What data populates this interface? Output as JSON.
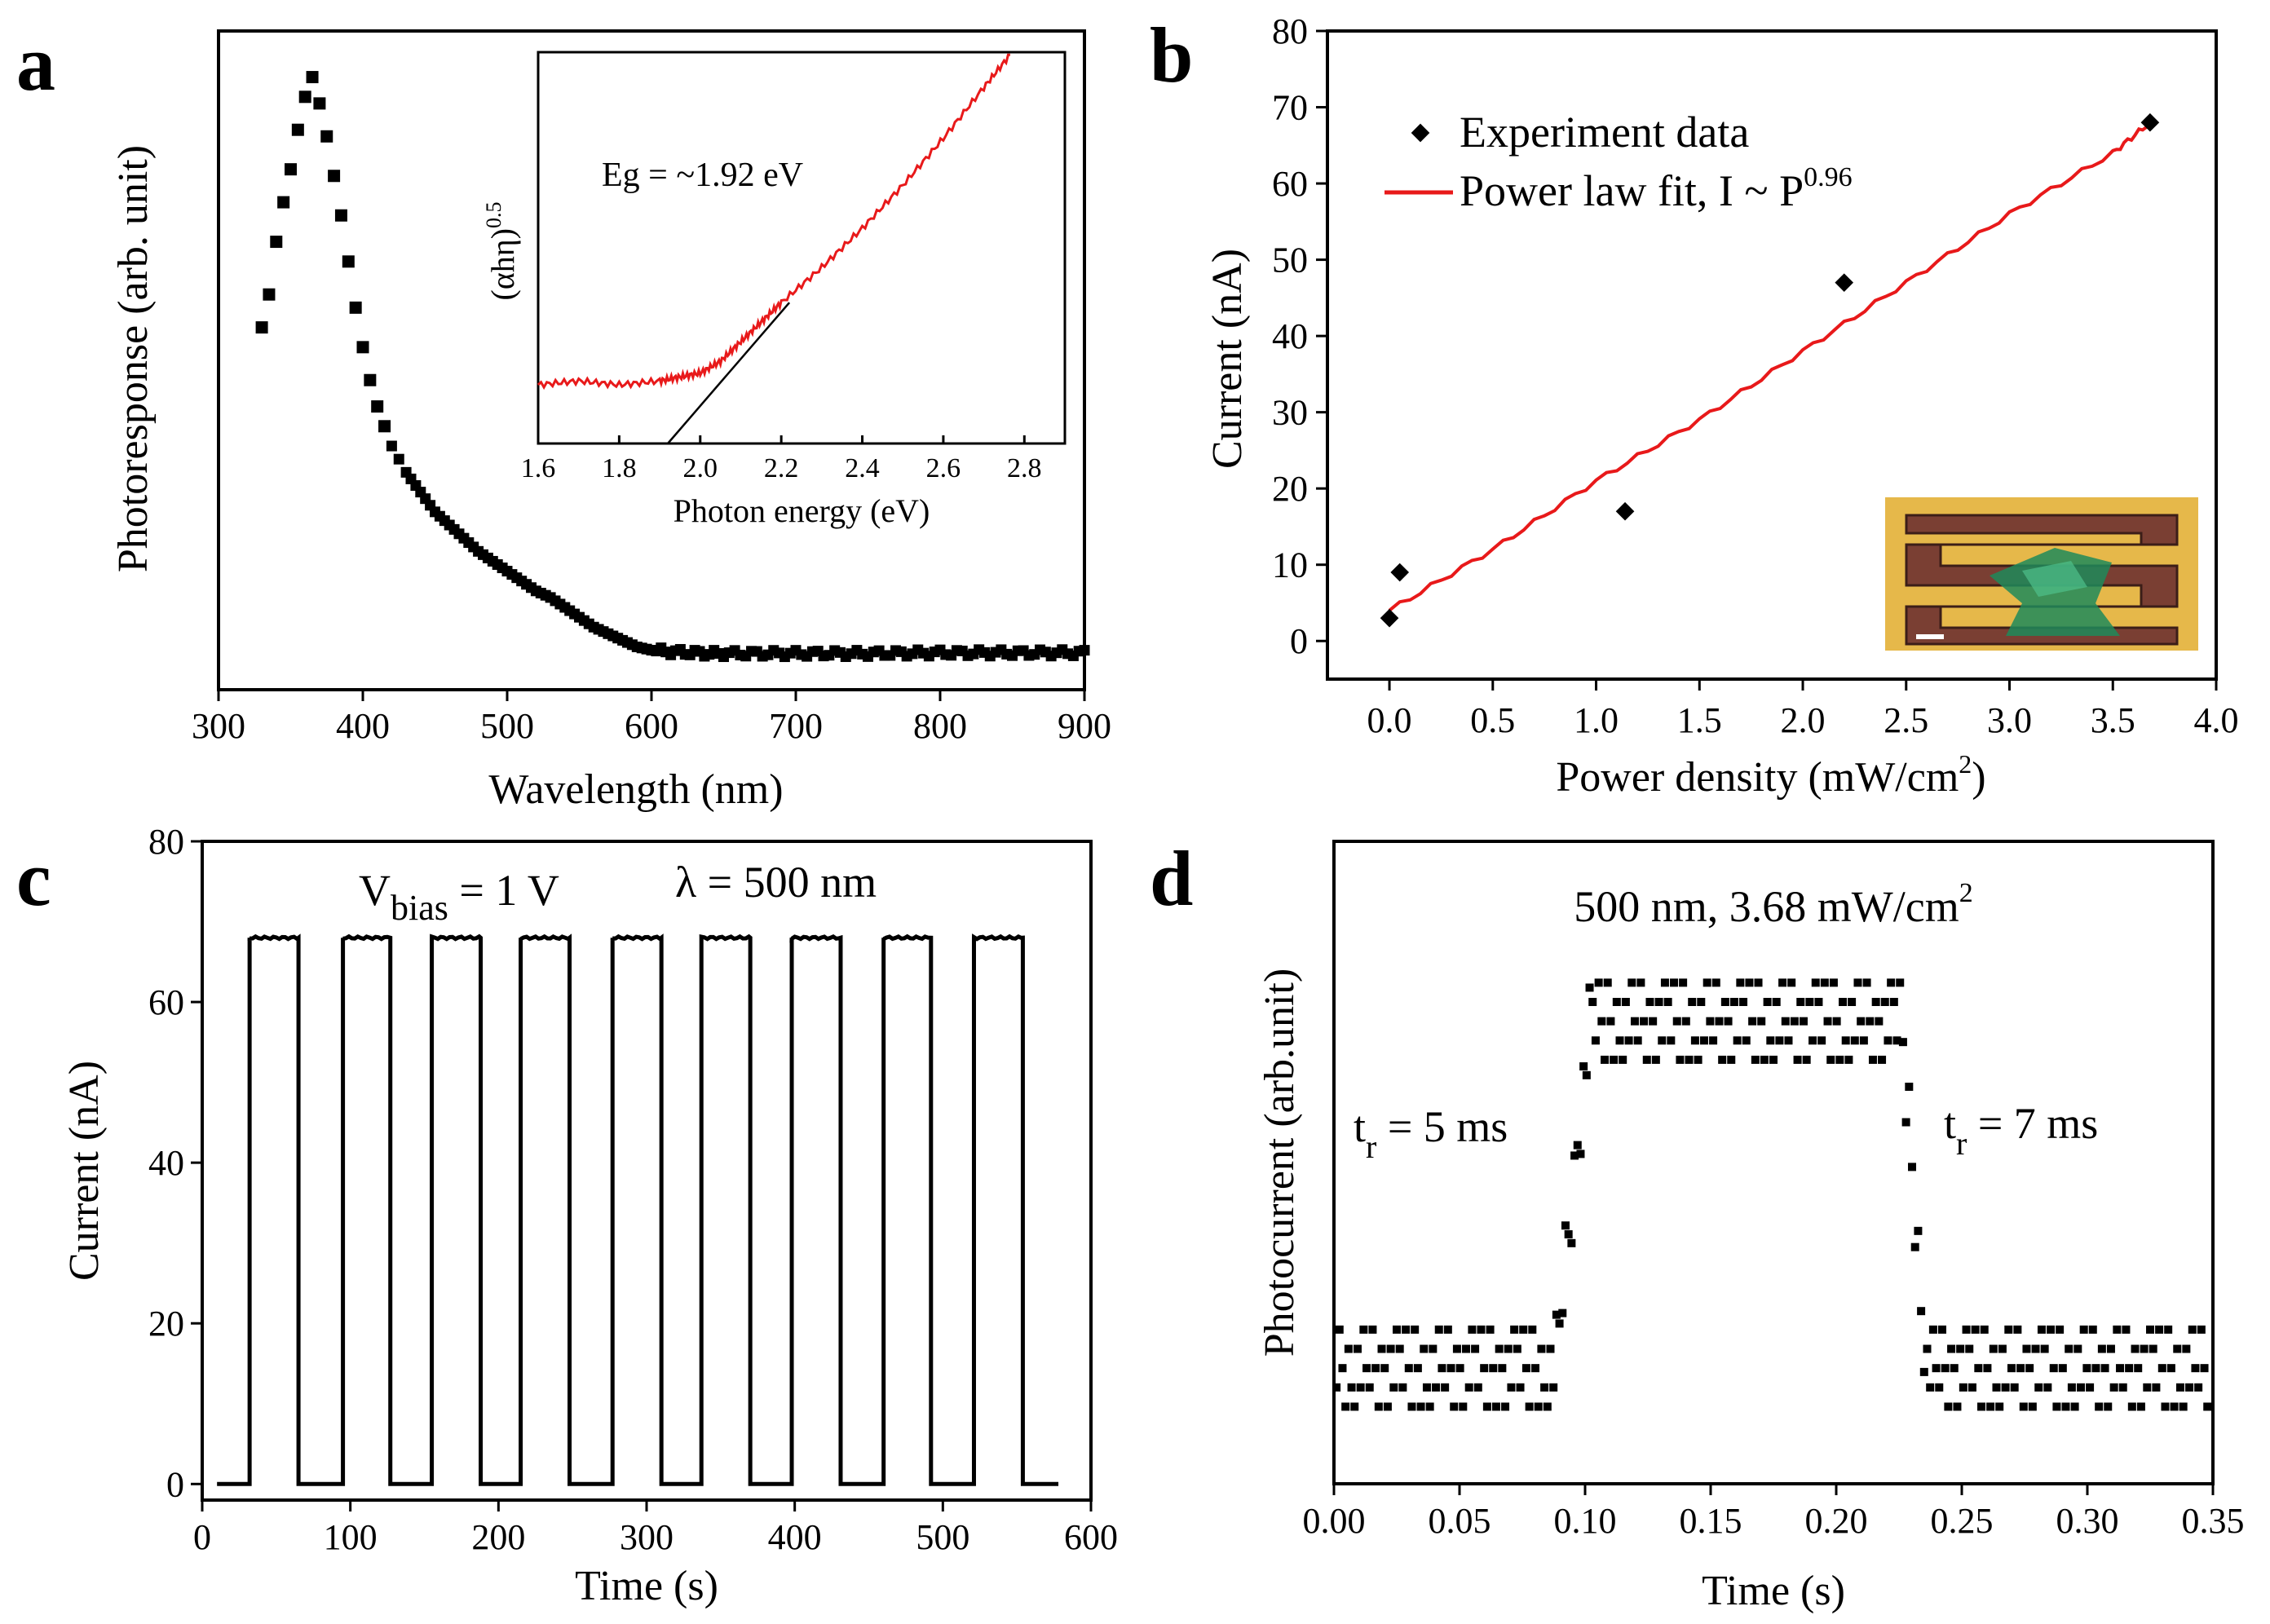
{
  "figure": {
    "panels": [
      {
        "id": "a",
        "label": "a"
      },
      {
        "id": "b",
        "label": "b"
      },
      {
        "id": "c",
        "label": "c"
      },
      {
        "id": "d",
        "label": "d"
      }
    ]
  },
  "chart_data": [
    {
      "id": "a",
      "type": "scatter",
      "panel_label": "a",
      "xlabel": "Wavelength (nm)",
      "ylabel": "Photoresponse (arb. unit)",
      "xlim": [
        300,
        900
      ],
      "xticks": [
        "300",
        "400",
        "500",
        "600",
        "700",
        "800",
        "900"
      ],
      "x": [
        330,
        335,
        340,
        345,
        350,
        355,
        360,
        365,
        370,
        375,
        380,
        385,
        390,
        395,
        400,
        405,
        410,
        415,
        420,
        425,
        430,
        440,
        450,
        460,
        470,
        480,
        490,
        500,
        510,
        520,
        530,
        540,
        550,
        560,
        570,
        580,
        590,
        600,
        610,
        620,
        630,
        640,
        650,
        700,
        750,
        800,
        850,
        900
      ],
      "y": [
        0.55,
        0.6,
        0.68,
        0.74,
        0.79,
        0.85,
        0.9,
        0.93,
        0.89,
        0.84,
        0.78,
        0.72,
        0.65,
        0.58,
        0.52,
        0.47,
        0.43,
        0.4,
        0.37,
        0.35,
        0.33,
        0.3,
        0.27,
        0.25,
        0.23,
        0.21,
        0.195,
        0.18,
        0.165,
        0.15,
        0.14,
        0.125,
        0.11,
        0.095,
        0.085,
        0.075,
        0.065,
        0.06,
        0.058,
        0.057,
        0.056,
        0.055,
        0.055,
        0.055,
        0.055,
        0.056,
        0.056,
        0.056
      ],
      "inset": {
        "type": "line",
        "xlabel": "Photon energy (eV)",
        "ylabel": "(αhη)^0.5",
        "ylabel_base": "(αhη)",
        "ylabel_sup": "0.5",
        "annotation": "Eg = ~1.92 eV",
        "xlim": [
          1.6,
          2.9
        ],
        "xticks": [
          "1.6",
          "1.8",
          "2.0",
          "2.2",
          "2.4",
          "2.6",
          "2.8"
        ],
        "series_color": "#e8191a",
        "x": [
          1.6,
          1.7,
          1.8,
          1.9,
          1.95,
          2.0,
          2.05,
          2.1,
          2.15,
          2.2,
          2.3,
          2.4,
          2.5,
          2.6,
          2.7,
          2.77
        ],
        "y": [
          0.15,
          0.16,
          0.15,
          0.16,
          0.17,
          0.18,
          0.21,
          0.26,
          0.31,
          0.36,
          0.45,
          0.55,
          0.66,
          0.78,
          0.91,
          1.0
        ],
        "fit_line": {
          "x": [
            1.92,
            2.22
          ],
          "y": [
            0.0,
            0.36
          ]
        }
      }
    },
    {
      "id": "b",
      "type": "scatter",
      "panel_label": "b",
      "xlabel": "Power density (mW/cm²)",
      "xlabel_base": "Power density (mW/cm",
      "xlabel_sup": "2",
      "xlabel_end": ")",
      "ylabel": "Current (nA)",
      "xlim": [
        -0.3,
        4.0
      ],
      "ylim": [
        -5,
        80
      ],
      "xticks": [
        "0.0",
        "0.5",
        "1.0",
        "1.5",
        "2.0",
        "2.5",
        "3.0",
        "3.5",
        "4.0"
      ],
      "yticks": [
        "0",
        "10",
        "20",
        "30",
        "40",
        "50",
        "60",
        "70",
        "80"
      ],
      "legend": [
        {
          "label": "Experiment data"
        },
        {
          "label": "Power law fit, I ~ P^0.96",
          "base": "Power law fit, I ~ P",
          "sup": "0.96",
          "color": "#e8191a"
        }
      ],
      "series": [
        {
          "name": "Experiment data",
          "x": [
            0.0,
            0.05,
            1.14,
            2.2,
            3.68
          ],
          "y": [
            3,
            9,
            17,
            47,
            68
          ]
        },
        {
          "name": "Power law fit",
          "x": [
            0.0,
            0.5,
            1.0,
            1.5,
            2.0,
            2.5,
            3.0,
            3.5,
            3.68
          ],
          "y": [
            4,
            12,
            21,
            29,
            38,
            47,
            56,
            64,
            68
          ]
        }
      ],
      "inset_image": "device-micrograph"
    },
    {
      "id": "c",
      "type": "line",
      "panel_label": "c",
      "xlabel": "Time (s)",
      "ylabel": "Current (nA)",
      "annotation_v": "V",
      "annotation_v_sub": "bias",
      "annotation_v_rest": " = 1 V",
      "annotation_lambda": "λ = 500 nm",
      "xlim": [
        0,
        600
      ],
      "ylim": [
        -2,
        80
      ],
      "xticks": [
        "0",
        "100",
        "200",
        "300",
        "400",
        "500",
        "600"
      ],
      "yticks": [
        "0",
        "20",
        "40",
        "60",
        "80"
      ],
      "baseline_nA": 0,
      "on_level_nA": 68,
      "on_intervals_s": [
        [
          32,
          65
        ],
        [
          95,
          127
        ],
        [
          155,
          188
        ],
        [
          215,
          248
        ],
        [
          277,
          310
        ],
        [
          337,
          370
        ],
        [
          398,
          431
        ],
        [
          460,
          492
        ],
        [
          521,
          554
        ]
      ],
      "x_end": 578
    },
    {
      "id": "d",
      "type": "scatter",
      "panel_label": "d",
      "xlabel": "Time (s)",
      "ylabel": "Photocurrent (arb.unit)",
      "title": "500 nm, 3.68 mW/cm²",
      "title_base": "500 nm, 3.68 mW/cm",
      "title_sup": "2",
      "rise_label_base": "t",
      "rise_label_sub": "r",
      "rise_label_rest": " = 5 ms",
      "fall_label_base": "t",
      "fall_label_sub": "r",
      "fall_label_rest": " = 7 ms",
      "xlim": [
        0,
        0.35
      ],
      "ylim": [
        0,
        1
      ],
      "xticks": [
        "0.00",
        "0.05",
        "0.10",
        "0.15",
        "0.20",
        "0.25",
        "0.30",
        "0.35"
      ],
      "rise_time_s": [
        0.088,
        0.102
      ],
      "fall_time_s": [
        0.226,
        0.236
      ],
      "low_level": 0.18,
      "high_level": 0.72,
      "noise": 0.06
    }
  ]
}
